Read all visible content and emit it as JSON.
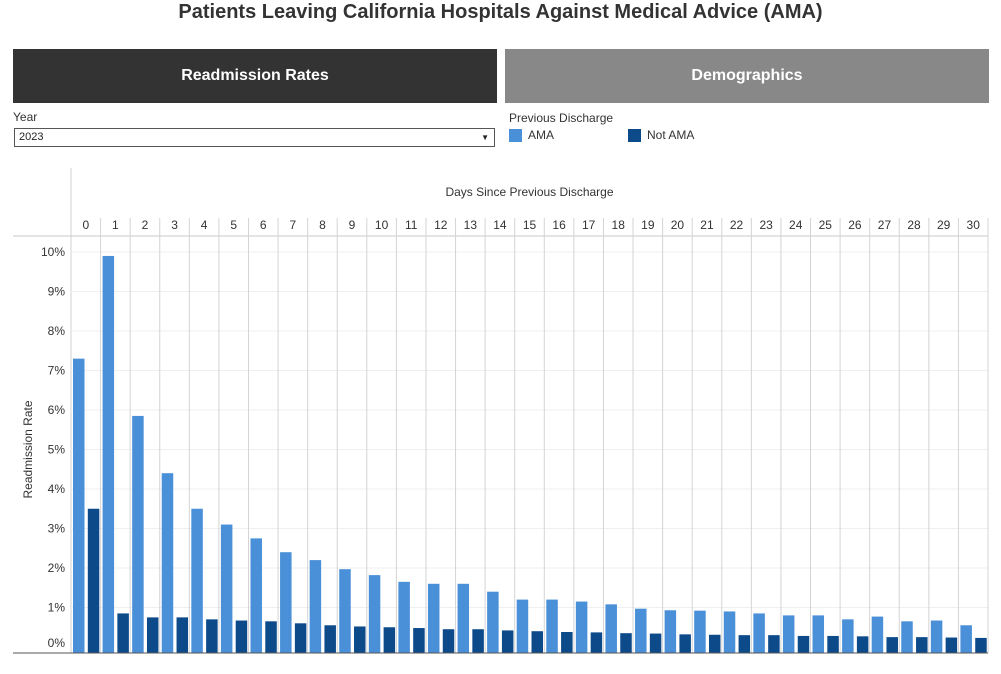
{
  "title": "Patients Leaving California Hospitals Against Medical Advice (AMA)",
  "tabs": [
    {
      "label": "Readmission Rates",
      "active": true
    },
    {
      "label": "Demographics",
      "active": false
    }
  ],
  "filter": {
    "label": "Year",
    "value": "2023"
  },
  "legend": {
    "title": "Previous Discharge",
    "items": [
      {
        "label": "AMA",
        "color": "#4a90d9"
      },
      {
        "label": "Not AMA",
        "color": "#0d4a8a"
      }
    ]
  },
  "chart_data": {
    "type": "bar",
    "title": "Days Since Previous Discharge",
    "xlabel": "Days Since Previous Discharge",
    "ylabel": "Readmission Rate",
    "categories": [
      "0",
      "1",
      "2",
      "3",
      "4",
      "5",
      "6",
      "7",
      "8",
      "9",
      "10",
      "11",
      "12",
      "13",
      "14",
      "15",
      "16",
      "17",
      "18",
      "19",
      "20",
      "21",
      "22",
      "23",
      "24",
      "25",
      "26",
      "27",
      "28",
      "29",
      "30"
    ],
    "ylim": [
      0,
      10
    ],
    "yticks": [
      "0%",
      "1%",
      "2%",
      "3%",
      "4%",
      "5%",
      "6%",
      "7%",
      "8%",
      "9%",
      "10%"
    ],
    "series": [
      {
        "name": "AMA",
        "color": "#4a90d9",
        "values": [
          7.3,
          9.9,
          5.85,
          4.4,
          3.5,
          3.1,
          2.75,
          2.4,
          2.2,
          1.97,
          1.82,
          1.65,
          1.6,
          1.6,
          1.4,
          1.2,
          1.2,
          1.15,
          1.08,
          0.97,
          0.93,
          0.92,
          0.9,
          0.85,
          0.8,
          0.8,
          0.7,
          0.77,
          0.65,
          0.67,
          0.55
        ]
      },
      {
        "name": "Not AMA",
        "color": "#0d4a8a",
        "values": [
          3.5,
          0.85,
          0.75,
          0.75,
          0.7,
          0.67,
          0.65,
          0.6,
          0.55,
          0.52,
          0.5,
          0.48,
          0.45,
          0.45,
          0.42,
          0.4,
          0.38,
          0.37,
          0.35,
          0.34,
          0.32,
          0.31,
          0.3,
          0.3,
          0.28,
          0.28,
          0.27,
          0.25,
          0.25,
          0.24,
          0.23
        ]
      }
    ]
  }
}
